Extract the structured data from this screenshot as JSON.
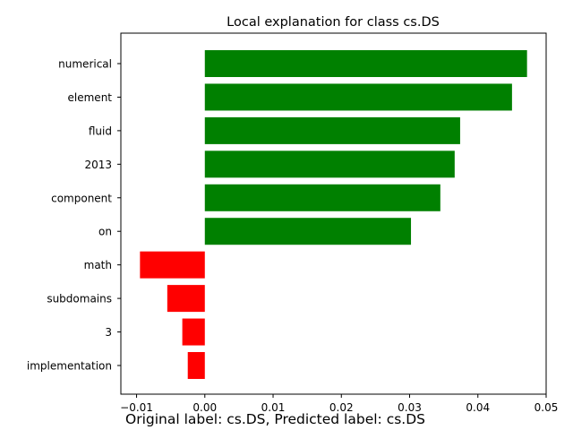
{
  "chart_data": {
    "type": "bar",
    "orientation": "horizontal",
    "title": "Local explanation for class cs.DS",
    "xlabel": "",
    "ylabel": "",
    "categories": [
      "numerical",
      "element",
      "fluid",
      "2013",
      "component",
      "on",
      "math",
      "subdomains",
      "3",
      "implementation"
    ],
    "values": [
      0.0472,
      0.045,
      0.0374,
      0.0366,
      0.0345,
      0.0302,
      -0.0095,
      -0.0055,
      -0.0033,
      -0.0025
    ],
    "xlim": [
      -0.0123,
      0.05
    ],
    "xticks": [
      -0.01,
      0.0,
      0.01,
      0.02,
      0.03,
      0.04,
      0.05
    ],
    "xtick_labels": [
      "−0.01",
      "0.00",
      "0.01",
      "0.02",
      "0.03",
      "0.04",
      "0.05"
    ],
    "grid": false,
    "colors": {
      "positive": "#008000",
      "negative": "#ff0000"
    }
  },
  "caption": "Original label: cs.DS, Predicted label: cs.DS"
}
